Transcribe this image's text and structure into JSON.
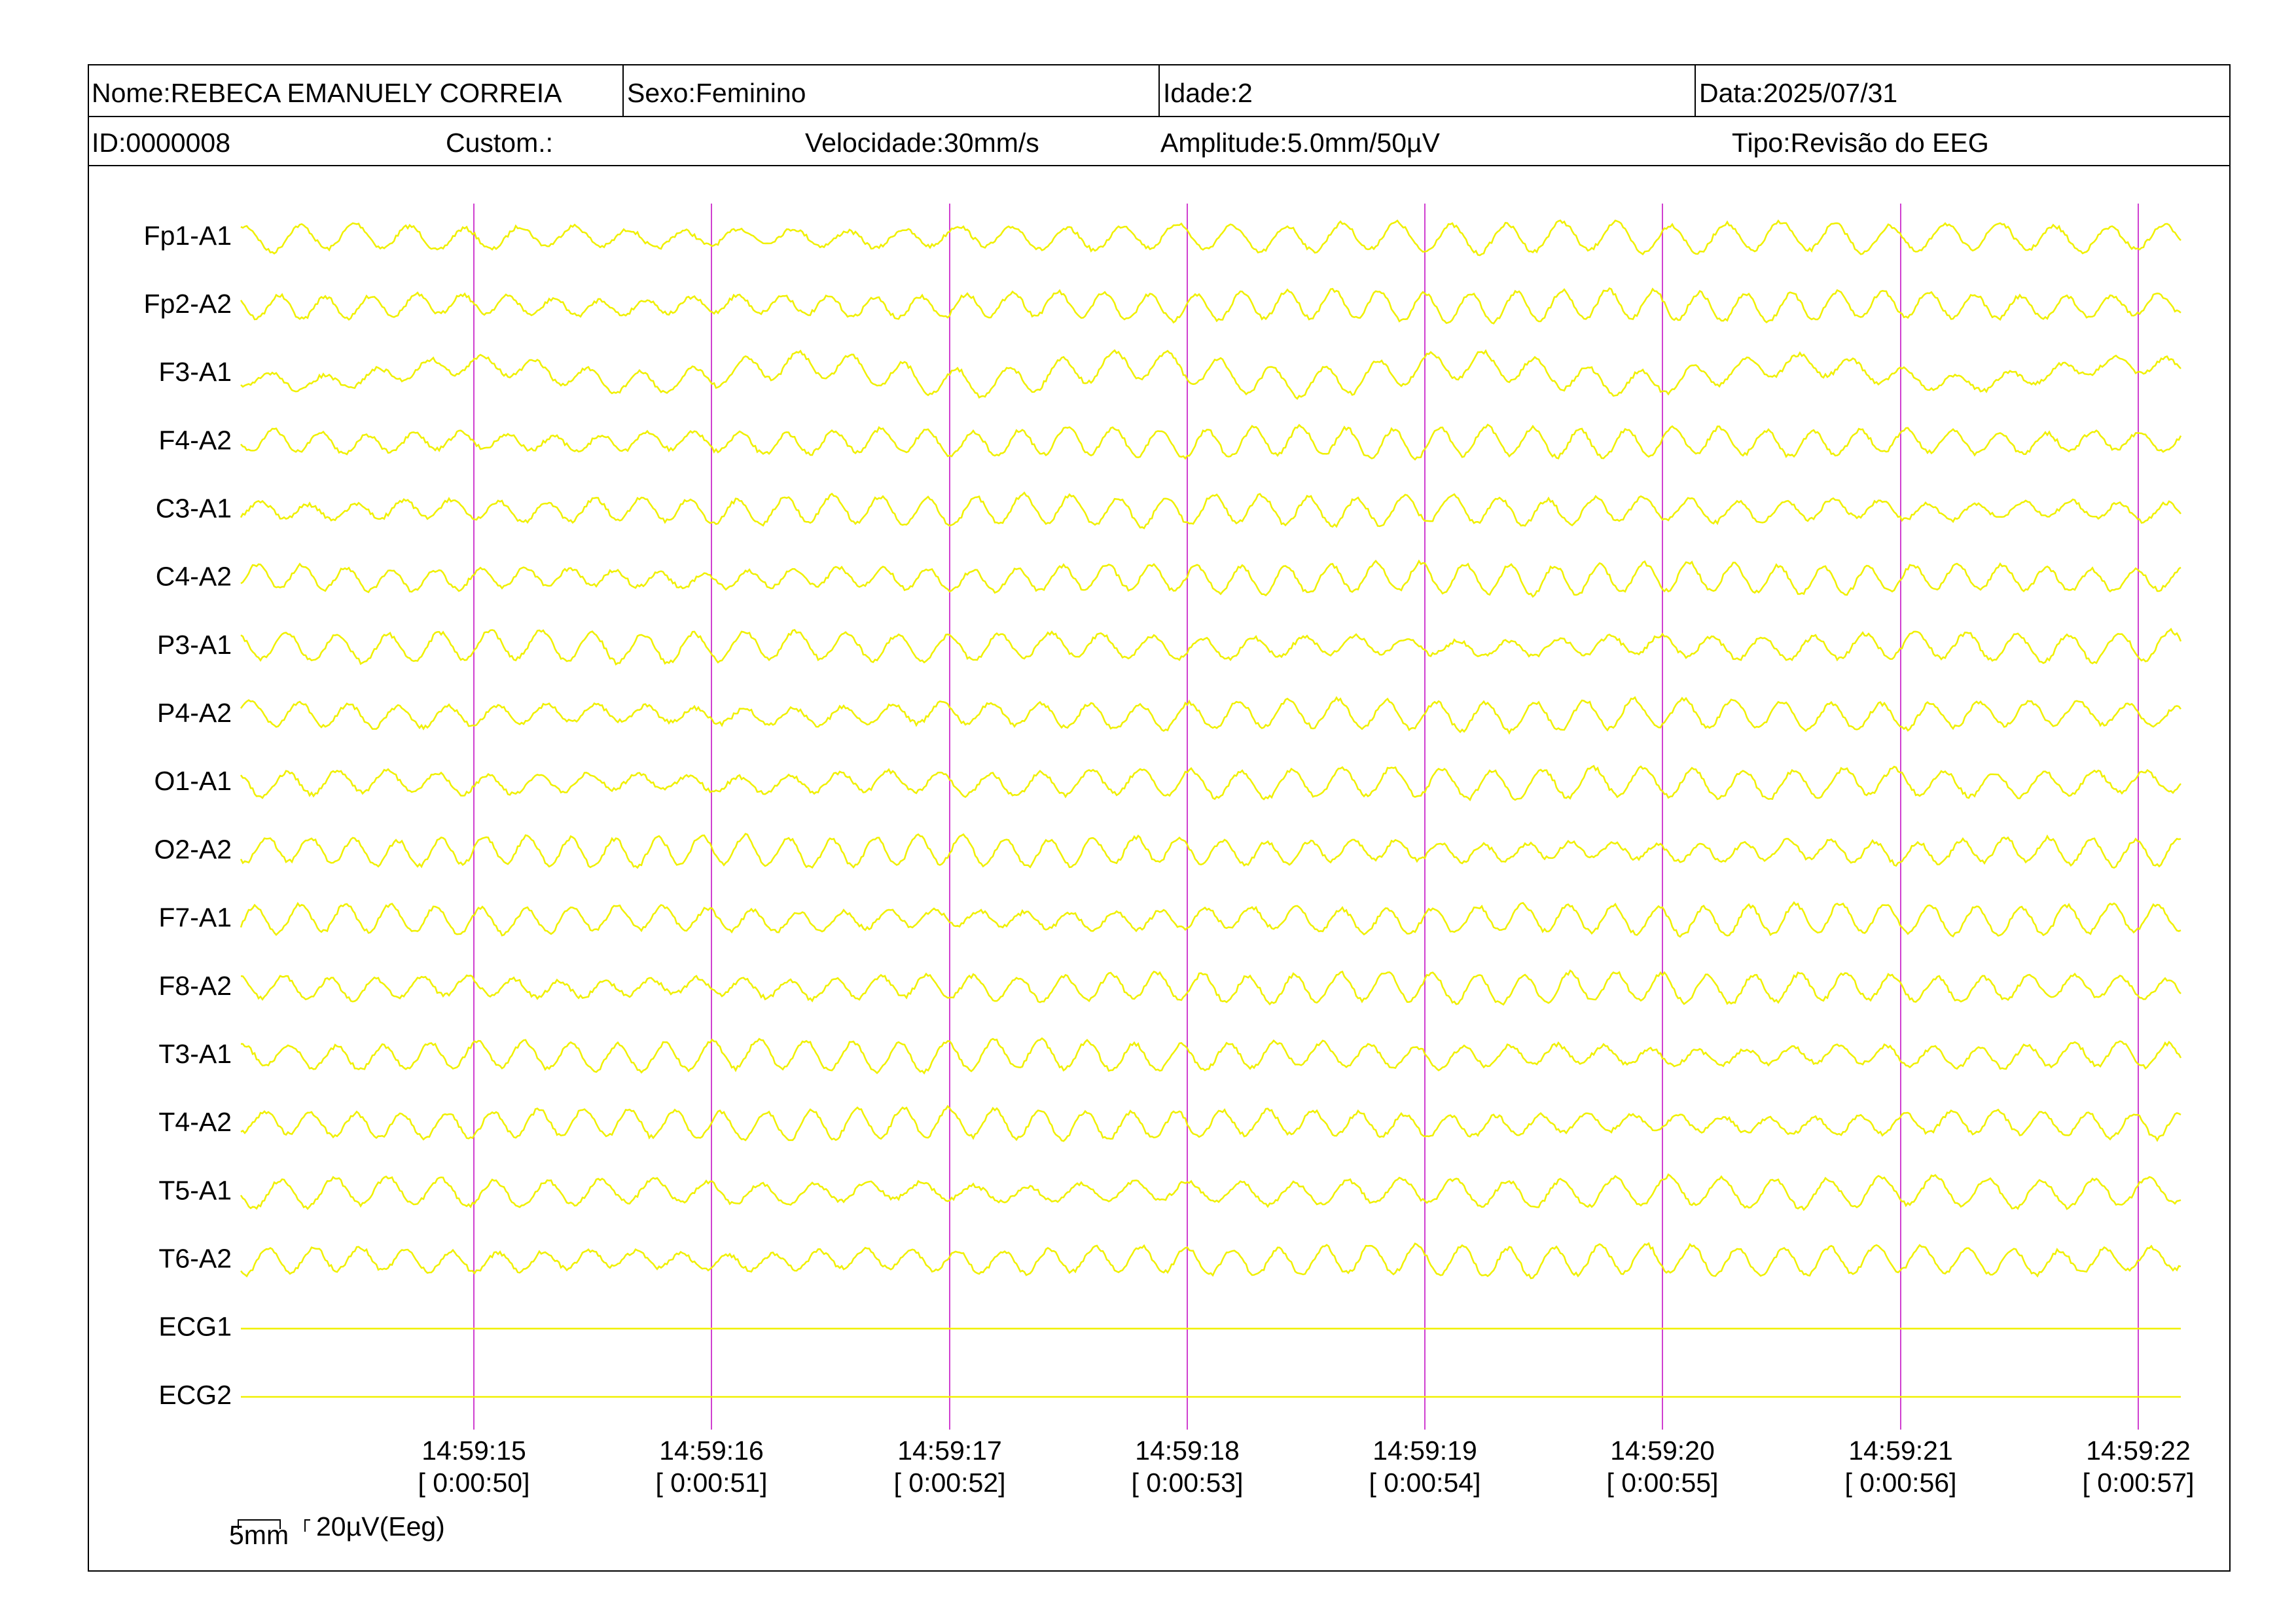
{
  "header": {
    "row1": [
      "Nome:REBECA EMANUELY CORREIA",
      "Sexo:Feminino",
      "Idade:2",
      "Data:2025/07/31"
    ],
    "row2": [
      "ID:0000008",
      "Custom.:",
      "Velocidade:30mm/s",
      "Amplitude:5.0mm/50µV",
      "Tipo:Revisão do EEG"
    ]
  },
  "channels": [
    "Fp1-A1",
    "Fp2-A2",
    "F3-A1",
    "F4-A2",
    "C3-A1",
    "C4-A2",
    "P3-A1",
    "P4-A2",
    "O1-A1",
    "O2-A2",
    "F7-A1",
    "F8-A2",
    "T3-A1",
    "T4-A2",
    "T5-A1",
    "T6-A2",
    "ECG1",
    "ECG2"
  ],
  "time_marks": [
    {
      "time": "14:59:15",
      "elapsed": "[ 0:00:50]"
    },
    {
      "time": "14:59:16",
      "elapsed": "[ 0:00:51]"
    },
    {
      "time": "14:59:17",
      "elapsed": "[ 0:00:52]"
    },
    {
      "time": "14:59:18",
      "elapsed": "[ 0:00:53]"
    },
    {
      "time": "14:59:19",
      "elapsed": "[ 0:00:54]"
    },
    {
      "time": "14:59:20",
      "elapsed": "[ 0:00:55]"
    },
    {
      "time": "14:59:21",
      "elapsed": "[ 0:00:56]"
    },
    {
      "time": "14:59:22",
      "elapsed": "[ 0:00:57]"
    }
  ],
  "scale": {
    "width_label": "5mm",
    "amplitude_label": "20µV(Eeg)"
  }
}
